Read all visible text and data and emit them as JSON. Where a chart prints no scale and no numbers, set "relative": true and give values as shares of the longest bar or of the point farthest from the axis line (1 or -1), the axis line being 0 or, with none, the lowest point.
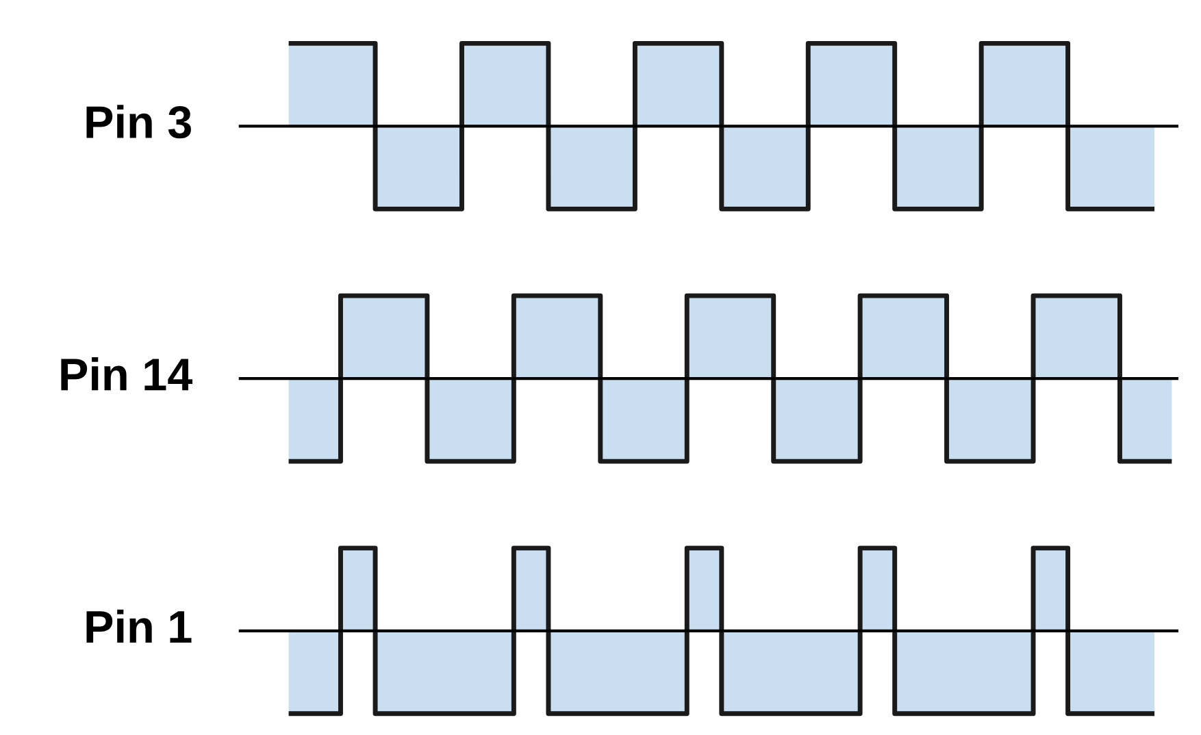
{
  "chart_data": [
    {
      "type": "step",
      "relative": true,
      "ylabel": "Pin 3",
      "categories": [
        null,
        null,
        null,
        null,
        null,
        null,
        null,
        null,
        null,
        null,
        null,
        null,
        null,
        null,
        null,
        null,
        null,
        null,
        null,
        null,
        null,
        null,
        null,
        null,
        null,
        null,
        null,
        null,
        null,
        null,
        null,
        null,
        null,
        null,
        null,
        null,
        null,
        null,
        null,
        null,
        null,
        null,
        null,
        null,
        null,
        null,
        null,
        null,
        null,
        null,
        null
      ],
      "series": [
        {
          "color": "#1a1a1a",
          "values": [
            1,
            1,
            1,
            1,
            1,
            -1,
            -1,
            -1,
            -1,
            -1,
            1,
            1,
            1,
            1,
            1,
            -1,
            -1,
            -1,
            -1,
            -1,
            1,
            1,
            1,
            1,
            1,
            -1,
            -1,
            -1,
            -1,
            -1,
            1,
            1,
            1,
            1,
            1,
            -1,
            -1,
            -1,
            -1,
            -1,
            1,
            1,
            1,
            1,
            1,
            -1,
            -1,
            -1,
            -1,
            -1,
            -1
          ]
        }
      ]
    },
    {
      "type": "step",
      "relative": true,
      "ylabel": "Pin 14",
      "categories": [
        null,
        null,
        null,
        null,
        null,
        null,
        null,
        null,
        null,
        null,
        null,
        null,
        null,
        null,
        null,
        null,
        null,
        null,
        null,
        null,
        null,
        null,
        null,
        null,
        null,
        null,
        null,
        null,
        null,
        null,
        null,
        null,
        null,
        null,
        null,
        null,
        null,
        null,
        null,
        null,
        null,
        null,
        null,
        null,
        null,
        null,
        null,
        null,
        null,
        null,
        null,
        null
      ],
      "series": [
        {
          "color": "#1a1a1a",
          "values": [
            -1,
            -1,
            -1,
            1,
            1,
            1,
            1,
            1,
            -1,
            -1,
            -1,
            -1,
            -1,
            1,
            1,
            1,
            1,
            1,
            -1,
            -1,
            -1,
            -1,
            -1,
            1,
            1,
            1,
            1,
            1,
            -1,
            -1,
            -1,
            -1,
            -1,
            1,
            1,
            1,
            1,
            1,
            -1,
            -1,
            -1,
            -1,
            -1,
            1,
            1,
            1,
            1,
            1,
            -1,
            -1,
            -1,
            -1
          ]
        }
      ]
    },
    {
      "type": "step",
      "relative": true,
      "ylabel": "Pin 1",
      "categories": [
        null,
        null,
        null,
        null,
        null,
        null,
        null,
        null,
        null,
        null,
        null,
        null,
        null,
        null,
        null,
        null,
        null,
        null,
        null,
        null,
        null,
        null,
        null,
        null,
        null,
        null,
        null,
        null,
        null,
        null,
        null,
        null,
        null,
        null,
        null,
        null,
        null,
        null,
        null,
        null,
        null,
        null,
        null,
        null,
        null,
        null,
        null,
        null,
        null,
        null,
        null
      ],
      "series": [
        {
          "color": "#1a1a1a",
          "values": [
            -1,
            -1,
            -1,
            1,
            1,
            -1,
            -1,
            -1,
            -1,
            -1,
            -1,
            -1,
            -1,
            1,
            1,
            -1,
            -1,
            -1,
            -1,
            -1,
            -1,
            -1,
            -1,
            1,
            1,
            -1,
            -1,
            -1,
            -1,
            -1,
            -1,
            -1,
            -1,
            1,
            1,
            -1,
            -1,
            -1,
            -1,
            -1,
            -1,
            -1,
            -1,
            1,
            1,
            -1,
            -1,
            -1,
            -1,
            -1,
            -1
          ]
        }
      ]
    }
  ]
}
